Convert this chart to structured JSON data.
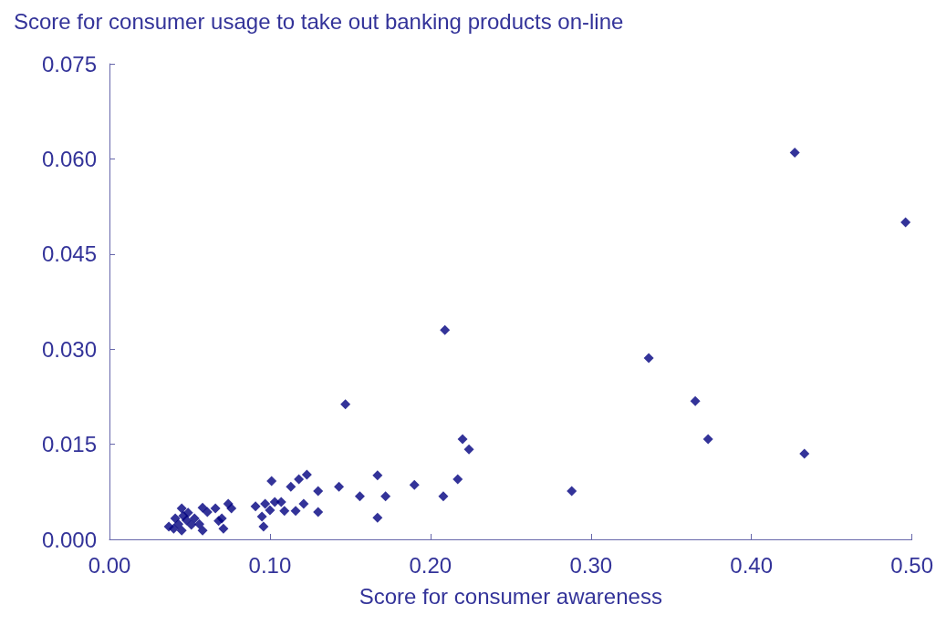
{
  "chart_data": {
    "type": "scatter",
    "title": "Score for consumer usage to take out banking products on-line",
    "xlabel": "Score for consumer awareness",
    "x": [
      0.427,
      0.496,
      0.209,
      0.336,
      0.147,
      0.365,
      0.373,
      0.433,
      0.22,
      0.224,
      0.288,
      0.217,
      0.208,
      0.19,
      0.167,
      0.172,
      0.156,
      0.167,
      0.143,
      0.13,
      0.13,
      0.123,
      0.118,
      0.113,
      0.121,
      0.116,
      0.109,
      0.107,
      0.101,
      0.103,
      0.1,
      0.097,
      0.091,
      0.095,
      0.096,
      0.074,
      0.076,
      0.07,
      0.071,
      0.068,
      0.066,
      0.061,
      0.058,
      0.058,
      0.056,
      0.053,
      0.049,
      0.048,
      0.045,
      0.045,
      0.043,
      0.041,
      0.04,
      0.037,
      0.051,
      0.046
    ],
    "values": [
      0.061,
      0.05,
      0.033,
      0.0286,
      0.0213,
      0.0218,
      0.0158,
      0.0135,
      0.0158,
      0.0142,
      0.0076,
      0.0095,
      0.0068,
      0.0086,
      0.0101,
      0.0068,
      0.0068,
      0.0034,
      0.0083,
      0.0076,
      0.0043,
      0.0102,
      0.0095,
      0.0083,
      0.0056,
      0.0045,
      0.0045,
      0.0059,
      0.0092,
      0.0059,
      0.0046,
      0.0056,
      0.0052,
      0.0036,
      0.002,
      0.0056,
      0.0049,
      0.0033,
      0.0017,
      0.0029,
      0.0049,
      0.0043,
      0.005,
      0.0014,
      0.0024,
      0.0033,
      0.0042,
      0.003,
      0.0049,
      0.0014,
      0.0024,
      0.0033,
      0.0017,
      0.002,
      0.0023,
      0.0037
    ],
    "color": "#000080",
    "marker": "diamond",
    "xlim": [
      0,
      0.5
    ],
    "xticks": [
      {
        "value": 0,
        "label": "0.00"
      },
      {
        "value": 0.1,
        "label": "0.10"
      },
      {
        "value": 0.2,
        "label": "0.20"
      },
      {
        "value": 0.3,
        "label": "0.30"
      },
      {
        "value": 0.4,
        "label": "0.40"
      },
      {
        "value": 0.5,
        "label": "0.50"
      }
    ],
    "ylim": [
      0,
      0.075
    ],
    "yticks": [
      {
        "value": 0,
        "label": "0.000"
      },
      {
        "value": 0.015,
        "label": "0.015"
      },
      {
        "value": 0.03,
        "label": "0.030"
      },
      {
        "value": 0.045,
        "label": "0.045"
      },
      {
        "value": 0.06,
        "label": "0.060"
      },
      {
        "value": 0.075,
        "label": "0.075"
      }
    ],
    "grid": false
  }
}
